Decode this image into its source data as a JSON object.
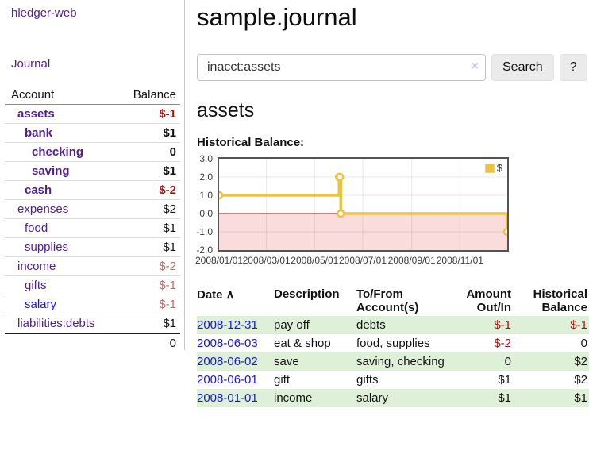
{
  "app": {
    "brand": "hledger-web"
  },
  "sidebar": {
    "nav": {
      "journal": "Journal"
    },
    "table": {
      "account_header": "Account",
      "balance_header": "Balance"
    },
    "accounts": [
      {
        "name": "assets",
        "balance": "$-1"
      },
      {
        "name": "bank",
        "balance": "$1"
      },
      {
        "name": "checking",
        "balance": "0"
      },
      {
        "name": "saving",
        "balance": "$1"
      },
      {
        "name": "cash",
        "balance": "$-2"
      },
      {
        "name": "expenses",
        "balance": "$2"
      },
      {
        "name": "food",
        "balance": "$1"
      },
      {
        "name": "supplies",
        "balance": "$1"
      },
      {
        "name": "income",
        "balance": "$-2"
      },
      {
        "name": "gifts",
        "balance": "$-1"
      },
      {
        "name": "salary",
        "balance": "$-1"
      },
      {
        "name": "liabilities:debts",
        "balance": "$1"
      }
    ],
    "total": "0"
  },
  "main": {
    "title": "sample.journal",
    "search": {
      "value": "inacct:assets",
      "clear_icon": "×",
      "search_button": "Search",
      "help_button": "?"
    },
    "heading": "assets",
    "chart_title": "Historical Balance:"
  },
  "chart_data": {
    "type": "line",
    "step": true,
    "title": "Historical Balance:",
    "series": [
      {
        "name": "$",
        "color": "#edc240",
        "points": [
          [
            "2008/01/01",
            1
          ],
          [
            "2008/06/01",
            2
          ],
          [
            "2008/06/02",
            2
          ],
          [
            "2008/06/03",
            0
          ],
          [
            "2008/12/31",
            -1
          ]
        ]
      }
    ],
    "xrange": [
      "2008/01/01",
      "2008/12/31"
    ],
    "ylim": [
      -2.0,
      3.0
    ],
    "yticks": [
      3.0,
      2.0,
      1.0,
      0.0,
      -1.0,
      -2.0
    ],
    "xticks": [
      "2008/01/01",
      "2008/03/01",
      "2008/05/01",
      "2008/07/01",
      "2008/09/01",
      "2008/11/01"
    ],
    "legend_position": "top-right",
    "grid": true,
    "negative_fill": "#fbdcdc",
    "zero_line_color": "#990000"
  },
  "register": {
    "sort_asc_icon": "∧",
    "headers": {
      "date": "Date",
      "description": "Description",
      "accounts": "To/From Account(s)",
      "amount": "Amount Out/In",
      "balance": "Historical Balance"
    },
    "rows": [
      {
        "date": "2008-12-31",
        "description": "pay off",
        "accounts": "debts",
        "amount": "$-1",
        "balance": "$-1"
      },
      {
        "date": "2008-06-03",
        "description": "eat & shop",
        "accounts": "food, supplies",
        "amount": "$-2",
        "balance": "0"
      },
      {
        "date": "2008-06-02",
        "description": "save",
        "accounts": "saving, checking",
        "amount": "0",
        "balance": "$2"
      },
      {
        "date": "2008-06-01",
        "description": "gift",
        "accounts": "gifts",
        "amount": "$1",
        "balance": "$2"
      },
      {
        "date": "2008-01-01",
        "description": "income",
        "accounts": "salary",
        "amount": "$1",
        "balance": "$1"
      }
    ]
  },
  "colors": {
    "link_purple": "#4f2092",
    "link_blue": "#1a16d0",
    "negative_strong": "#9d1717",
    "negative_muted": "#bb6a6a",
    "row_green": "#dff0d8",
    "chart_line": "#edc240",
    "chart_negative_fill": "#fbdcdc",
    "chart_zero_line": "#990000"
  }
}
